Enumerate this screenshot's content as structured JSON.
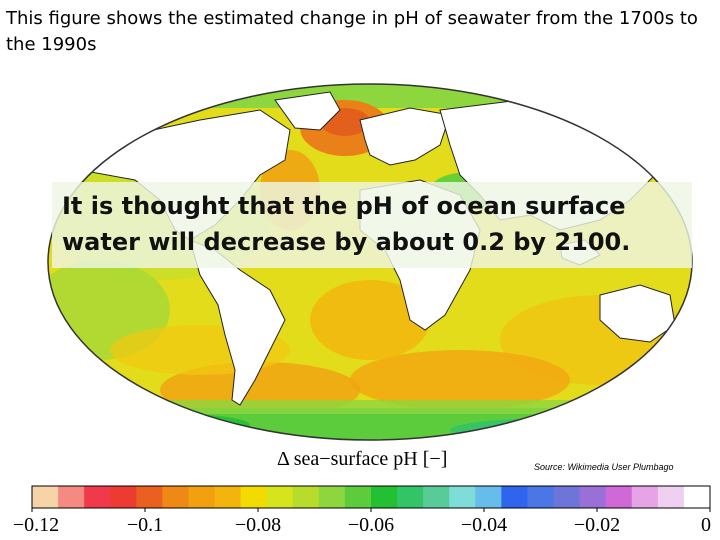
{
  "caption": "This figure shows the estimated change in pH of seawater from the 1700s to the 1990s",
  "overlay_text": "It is thought that the pH of ocean surface water will decrease by about 0.2 by 2100.",
  "legend": {
    "title": "Δ sea−surface pH [−]",
    "source": "Source: Wikimedia User Plumbago",
    "tick_labels": [
      "−0.12",
      "−0.1",
      "−0.08",
      "−0.06",
      "−0.04",
      "−0.02",
      "0"
    ],
    "range": [
      -0.12,
      0
    ],
    "colors": [
      "#f6d4a7",
      "#f48a82",
      "#f03a4c",
      "#ee3b32",
      "#ea6020",
      "#ee8a14",
      "#f2a010",
      "#f4b40e",
      "#f2dc00",
      "#d6e41c",
      "#b8dc2c",
      "#8ed63e",
      "#5ccc3c",
      "#22c032",
      "#32c466",
      "#58cc98",
      "#80dcd8",
      "#66bcea",
      "#2e64ee",
      "#4a76e6",
      "#6e74d8",
      "#9a70d8",
      "#d068d8",
      "#e6a4e6",
      "#f0d0f0",
      "#ffffff"
    ]
  }
}
